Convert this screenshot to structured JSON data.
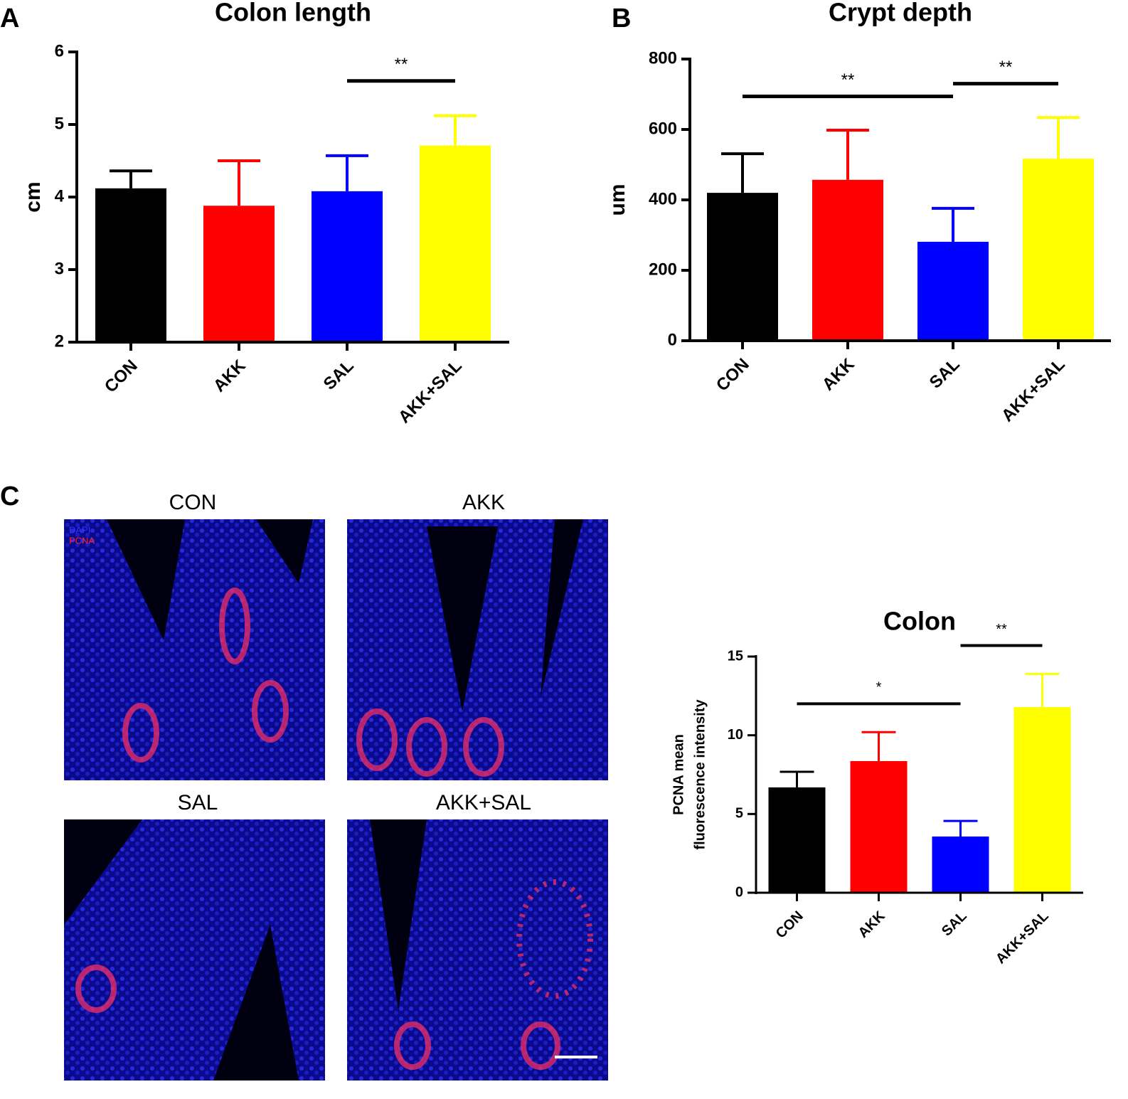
{
  "panel_labels": [
    "A",
    "B",
    "C"
  ],
  "images": {
    "titles": [
      "CON",
      "AKK",
      "SAL",
      "AKK+SAL"
    ],
    "stains": [
      {
        "name": "DAPI",
        "color": "#3333ff"
      },
      {
        "name": "PCNA",
        "color": "#ff2020"
      }
    ]
  },
  "chart_data": [
    {
      "type": "bar",
      "title": "Colon length",
      "ylabel": "cm",
      "categories": [
        "CON",
        "AKK",
        "SAL",
        "AKK+SAL"
      ],
      "values": [
        4.12,
        3.88,
        4.08,
        4.71
      ],
      "errors": [
        0.24,
        0.62,
        0.49,
        0.41
      ],
      "colors": [
        "#000000",
        "#ff0000",
        "#0000ff",
        "#ffff00"
      ],
      "ylim": [
        2,
        6
      ],
      "yticks": [
        2,
        3,
        4,
        5,
        6
      ],
      "annotations": [
        {
          "text": "**",
          "between": [
            "SAL",
            "AKK+SAL"
          ]
        }
      ]
    },
    {
      "type": "bar",
      "title": "Crypt depth",
      "ylabel": "um",
      "categories": [
        "CON",
        "AKK",
        "SAL",
        "AKK+SAL"
      ],
      "values": [
        420,
        457,
        281,
        517
      ],
      "errors": [
        111,
        141,
        95,
        117
      ],
      "colors": [
        "#000000",
        "#ff0000",
        "#0000ff",
        "#ffff00"
      ],
      "ylim": [
        0,
        800
      ],
      "yticks": [
        0,
        200,
        400,
        600,
        800
      ],
      "annotations": [
        {
          "text": "**",
          "between": [
            "CON",
            "SAL"
          ]
        },
        {
          "text": "**",
          "between": [
            "SAL",
            "AKK+SAL"
          ]
        }
      ]
    },
    {
      "type": "bar",
      "title": "Colon",
      "ylabel": [
        "PCNA mean",
        "fluorescence intensity"
      ],
      "categories": [
        "CON",
        "AKK",
        "SAL",
        "AKK+SAL"
      ],
      "values": [
        6.69,
        8.36,
        3.57,
        11.79
      ],
      "errors": [
        0.99,
        1.84,
        0.99,
        2.11
      ],
      "colors": [
        "#000000",
        "#ff0000",
        "#0000ff",
        "#ffff00"
      ],
      "ylim": [
        0,
        15
      ],
      "yticks": [
        0,
        5,
        10,
        15
      ],
      "annotations": [
        {
          "text": "*",
          "between": [
            "CON",
            "SAL"
          ]
        },
        {
          "text": "**",
          "between": [
            "SAL",
            "AKK+SAL"
          ]
        }
      ]
    }
  ]
}
